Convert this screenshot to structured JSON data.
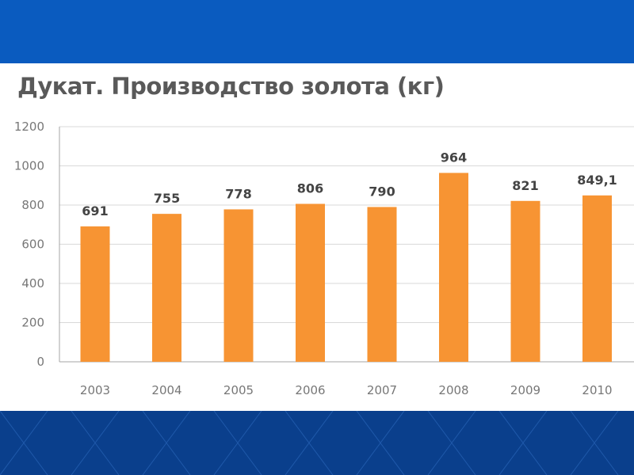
{
  "chart_data": {
    "type": "bar",
    "title": "Дукат. Производство золота (кг)",
    "categories": [
      "2003",
      "2004",
      "2005",
      "2006",
      "2007",
      "2008",
      "2009",
      "2010"
    ],
    "values": [
      691,
      755,
      778,
      806,
      790,
      964,
      821,
      849.1
    ],
    "data_labels": [
      "691",
      "755",
      "778",
      "806",
      "790",
      "964",
      "821",
      "849,1"
    ],
    "y_ticks": [
      "0",
      "200",
      "400",
      "600",
      "800",
      "1000",
      "1200"
    ],
    "ylim": [
      0,
      1200
    ],
    "grid": true,
    "legend": "none",
    "xlabel": "",
    "ylabel": ""
  },
  "colors": {
    "bar": "#f79433",
    "grid": "#d9d9d9",
    "axis": "#a6a6a6",
    "top_band": "#0a5bbf",
    "bottom_band": "#0a3f8c"
  }
}
